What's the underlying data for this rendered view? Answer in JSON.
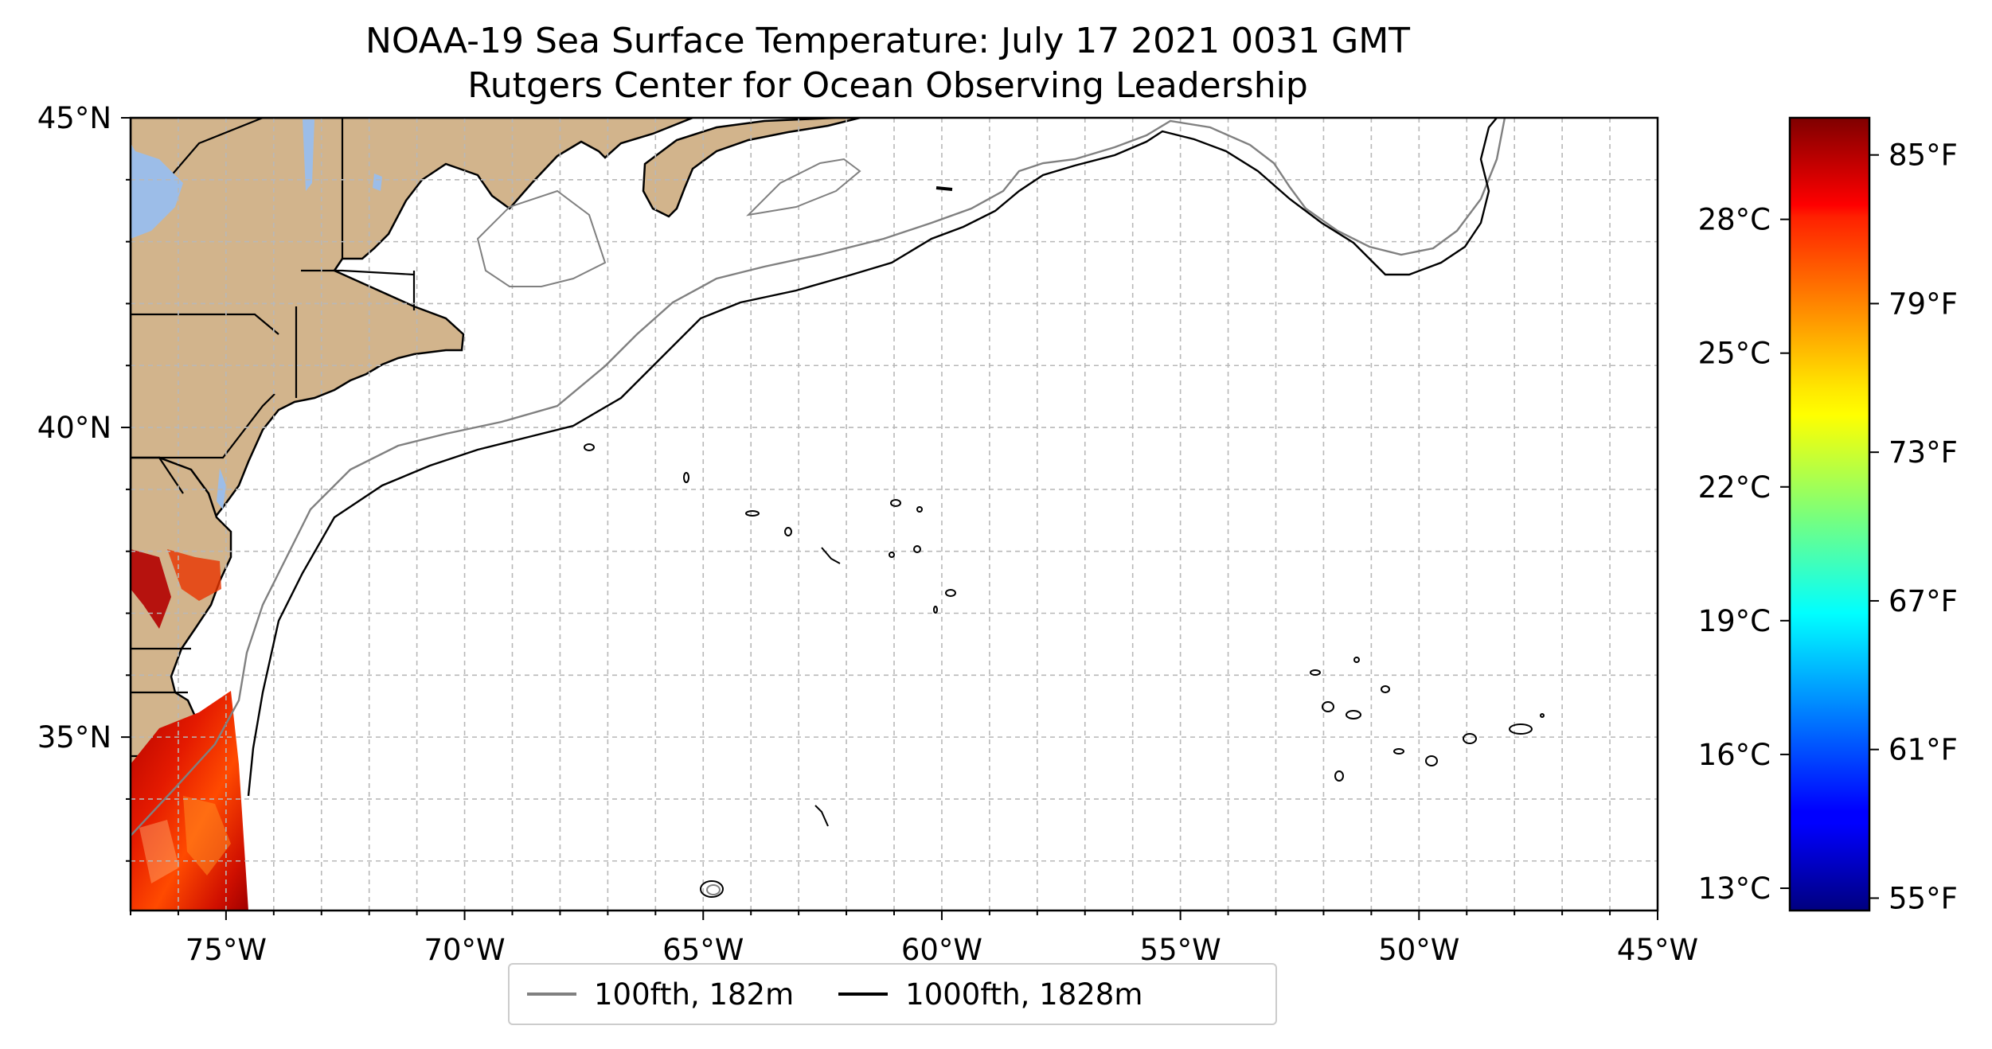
{
  "title": {
    "line1": "NOAA-19 Sea Surface Temperature: July 17 2021 0031 GMT",
    "line2": "Rutgers Center for Ocean Observing Leadership"
  },
  "map": {
    "lon_range": [
      -77,
      -45
    ],
    "lat_range": [
      32.2,
      45
    ],
    "land_color": "#d2b48c",
    "lake_color": "#9cbde8",
    "grid": "on",
    "lon_ticks": [
      {
        "value": -75,
        "label": "75°W"
      },
      {
        "value": -70,
        "label": "70°W"
      },
      {
        "value": -65,
        "label": "65°W"
      },
      {
        "value": -60,
        "label": "60°W"
      },
      {
        "value": -55,
        "label": "55°W"
      },
      {
        "value": -50,
        "label": "50°W"
      },
      {
        "value": -45,
        "label": "45°W"
      }
    ],
    "lat_ticks": [
      {
        "value": 35,
        "label": "35°N"
      },
      {
        "value": 40,
        "label": "40°N"
      },
      {
        "value": 45,
        "label": "45°N"
      }
    ]
  },
  "legend": {
    "items": [
      {
        "label": "100fth, 182m",
        "color": "#808080"
      },
      {
        "label": "1000fth, 1828m",
        "color": "#000000"
      }
    ],
    "placement": "bottom-center"
  },
  "colorbar": {
    "colormap": "jet",
    "range_f": [
      54.5,
      86.5
    ],
    "celsius_ticks": [
      "13°C",
      "16°C",
      "19°C",
      "22°C",
      "25°C",
      "28°C"
    ],
    "fahrenheit_ticks": [
      "55°F",
      "61°F",
      "67°F",
      "73°F",
      "79°F",
      "85°F"
    ]
  }
}
